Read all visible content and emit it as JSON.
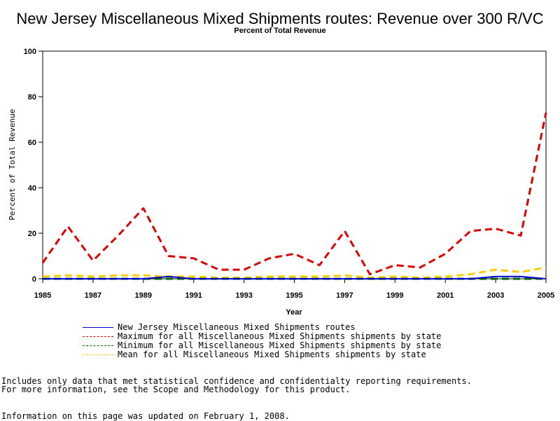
{
  "chart_data": {
    "type": "line",
    "title": "New Jersey Miscellaneous Mixed Shipments routes: Revenue over 300 R/VC",
    "subtitle": "Percent of Total Revenue",
    "xlabel": "Year",
    "ylabel": "Percent of Total Revenue",
    "xlim": [
      1985,
      2005
    ],
    "ylim": [
      0,
      100
    ],
    "x_ticks": [
      1985,
      1987,
      1989,
      1991,
      1993,
      1995,
      1997,
      1999,
      2001,
      2003,
      2005
    ],
    "y_ticks": [
      0,
      20,
      40,
      60,
      80,
      100
    ],
    "x": [
      1985,
      1986,
      1987,
      1988,
      1989,
      1990,
      1991,
      1992,
      1993,
      1994,
      1995,
      1996,
      1997,
      1998,
      1999,
      2000,
      2001,
      2002,
      2003,
      2004,
      2005
    ],
    "series": [
      {
        "name": "New Jersey Miscellaneous Mixed Shipments routes",
        "color": "#0000cc",
        "style": "solid",
        "values": [
          0,
          0,
          0,
          0,
          0,
          1,
          0,
          0,
          0,
          0,
          0,
          0,
          0,
          0,
          0,
          0,
          0,
          0,
          1,
          1,
          0
        ]
      },
      {
        "name": "Maximum for all Miscellaneous Mixed Shipments shipments by state",
        "color": "#dd0000",
        "style": "dashed",
        "values": [
          7,
          23,
          8,
          19,
          31,
          10,
          9,
          4,
          4,
          9,
          11,
          6,
          21,
          2,
          6,
          5,
          11,
          21,
          22,
          19,
          73
        ]
      },
      {
        "name": "Minimum for all Miscellaneous Mixed Shipments shipments by state",
        "color": "#006600",
        "style": "dashed",
        "values": [
          0,
          0,
          0,
          0,
          0,
          0,
          0,
          0,
          0,
          0,
          0,
          0,
          0,
          0,
          0,
          0,
          0,
          0,
          0,
          0,
          0
        ]
      },
      {
        "name": "Mean for all Miscellaneous Mixed Shipments shipments by state",
        "color": "#ffcc00",
        "style": "dashed",
        "values": [
          1,
          1.5,
          1,
          1.5,
          1.5,
          1,
          1,
          0.5,
          0.5,
          1,
          1,
          1,
          1.5,
          0.5,
          1,
          0.5,
          1,
          2,
          4,
          3,
          5
        ]
      }
    ]
  },
  "notes": {
    "line1": "Includes only data that met statistical confidence and confidentialty reporting requirements.",
    "line2": "For more information, see the Scope and Methodology for this product.",
    "line3": "Information on this page was updated on February 1, 2008."
  }
}
